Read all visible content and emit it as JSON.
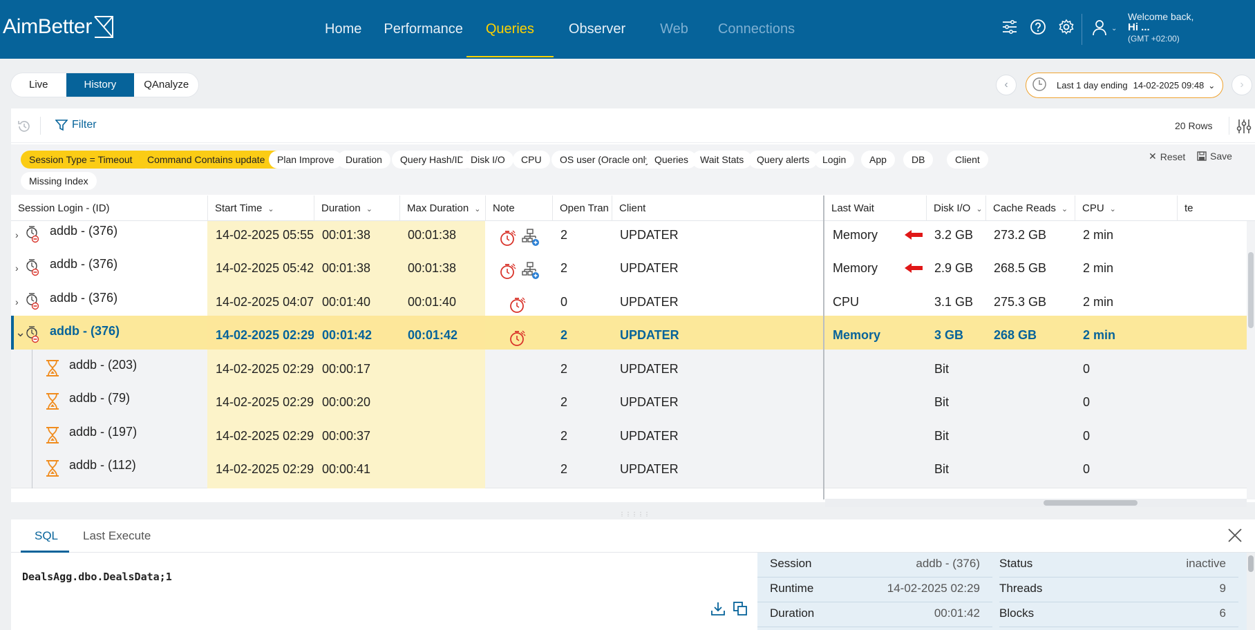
{
  "app": {
    "logo": "AimBetter",
    "nav": [
      "Home",
      "Performance",
      "Queries",
      "Observer",
      "Web",
      "Connections"
    ],
    "active_nav": "Queries",
    "welcome": "Welcome back,",
    "user": "Hi ...",
    "timezone": "(GMT +02:00)"
  },
  "modes": [
    "Live",
    "History",
    "QAnalyze"
  ],
  "active_mode": "History",
  "daterange": {
    "label": "Last 1 day ending",
    "date": "14-02-2025 09:48"
  },
  "toolbar": {
    "filter_label": "Filter",
    "rows_count": "20 Rows"
  },
  "chips": {
    "active": [
      "Session Type = Timeout",
      "Command Contains update"
    ],
    "inactive": [
      "Plan Improve",
      "Duration",
      "Query Hash/ID",
      "Disk I/O",
      "CPU",
      "OS user (Oracle only)",
      "Queries",
      "Wait Stats",
      "Query alerts",
      "Login",
      "App",
      "DB",
      "Client",
      "Missing Index"
    ],
    "reset": "Reset",
    "save": "Save"
  },
  "table": {
    "columns": [
      "Session Login - (ID)",
      "Start Time",
      "Duration",
      "Max Duration",
      "Note",
      "Open Tran",
      "Client",
      "Last Wait",
      "Disk I/O",
      "Cache Reads",
      "CPU",
      "te"
    ],
    "rows": [
      {
        "login": "addb - (376)",
        "start": "14-02-2025 05:55",
        "duration": "00:01:38",
        "max": "00:01:38",
        "note": [
          "stopwatch-icon",
          "plan-icon"
        ],
        "open_tran": "2",
        "client": "UPDATER",
        "last_wait": "Memory",
        "wait_arrow": true,
        "disk": "3.2 GB",
        "cache": "273.2 GB",
        "cpu": "2 min",
        "type": "parent"
      },
      {
        "login": "addb - (376)",
        "start": "14-02-2025 05:42",
        "duration": "00:01:38",
        "max": "00:01:38",
        "note": [
          "stopwatch-icon",
          "plan-icon"
        ],
        "open_tran": "2",
        "client": "UPDATER",
        "last_wait": "Memory",
        "wait_arrow": true,
        "disk": "2.9 GB",
        "cache": "268.5 GB",
        "cpu": "2 min",
        "type": "parent"
      },
      {
        "login": "addb - (376)",
        "start": "14-02-2025 04:07",
        "duration": "00:01:40",
        "max": "00:01:40",
        "note": [
          "stopwatch-icon"
        ],
        "open_tran": "0",
        "client": "UPDATER",
        "last_wait": "CPU",
        "wait_arrow": false,
        "disk": "3.1 GB",
        "cache": "275.3 GB",
        "cpu": "2 min",
        "type": "parent"
      },
      {
        "login": "addb - (376)",
        "start": "14-02-2025 02:29",
        "duration": "00:01:42",
        "max": "00:01:42",
        "note": [
          "stopwatch-icon"
        ],
        "open_tran": "2",
        "client": "UPDATER",
        "last_wait": "Memory",
        "wait_arrow": false,
        "disk": "3 GB",
        "cache": "268 GB",
        "cpu": "2 min",
        "type": "selected"
      },
      {
        "login": "addb - (203)",
        "start": "14-02-2025 02:29",
        "duration": "00:00:17",
        "max": "",
        "note": [],
        "open_tran": "2",
        "client": "UPDATER",
        "last_wait": "",
        "wait_arrow": false,
        "disk": "Bit",
        "cache": "",
        "cpu": "0",
        "type": "child"
      },
      {
        "login": "addb - (79)",
        "start": "14-02-2025 02:29",
        "duration": "00:00:20",
        "max": "",
        "note": [],
        "open_tran": "2",
        "client": "UPDATER",
        "last_wait": "",
        "wait_arrow": false,
        "disk": "Bit",
        "cache": "",
        "cpu": "0",
        "type": "child"
      },
      {
        "login": "addb - (197)",
        "start": "14-02-2025 02:29",
        "duration": "00:00:37",
        "max": "",
        "note": [],
        "open_tran": "2",
        "client": "UPDATER",
        "last_wait": "",
        "wait_arrow": false,
        "disk": "Bit",
        "cache": "",
        "cpu": "0",
        "type": "child"
      },
      {
        "login": "addb - (112)",
        "start": "14-02-2025 02:29",
        "duration": "00:00:41",
        "max": "",
        "note": [],
        "open_tran": "2",
        "client": "UPDATER",
        "last_wait": "",
        "wait_arrow": false,
        "disk": "Bit",
        "cache": "",
        "cpu": "0",
        "type": "child"
      }
    ]
  },
  "detail": {
    "tabs": [
      "SQL",
      "Last Execute"
    ],
    "sql": "DealsAgg.dbo.DealsData;1",
    "info_left": [
      {
        "k": "Session",
        "v": "addb - (376)"
      },
      {
        "k": "Runtime",
        "v": "14-02-2025 02:29"
      },
      {
        "k": "Duration",
        "v": "00:01:42"
      }
    ],
    "info_right": [
      {
        "k": "Status",
        "v": "inactive"
      },
      {
        "k": "Threads",
        "v": "9"
      },
      {
        "k": "Blocks",
        "v": "6"
      }
    ]
  },
  "colors": {
    "brand": "#06639a",
    "accent": "#ffd200",
    "chip_active": "#fbcc15",
    "selected_row": "#fce89a"
  }
}
